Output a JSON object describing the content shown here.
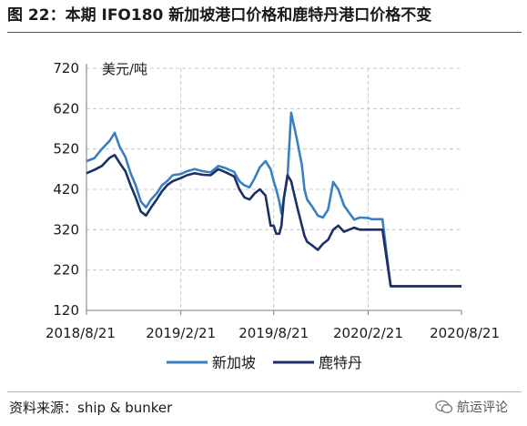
{
  "figure": {
    "title": "图 22：本期 IFO180 新加坡港口价格和鹿特丹港口价格不变",
    "source": "资料来源：ship & bunker",
    "watermark": "航运评论"
  },
  "colors": {
    "singapore": "#3a7fc2",
    "rotterdam": "#1c2f66",
    "grid": "#c8c8c8",
    "axis": "#7a7a7a",
    "title_rule": "#2b5f92"
  },
  "chart_data": {
    "type": "line",
    "ylabel": "美元/吨",
    "ylim": [
      120,
      720
    ],
    "yticks": [
      120,
      220,
      320,
      420,
      520,
      620,
      720
    ],
    "xlim": [
      "2018-08-21",
      "2020-08-21"
    ],
    "xticks": [
      "2018/8/21",
      "2019/2/21",
      "2019/8/21",
      "2020/2/21",
      "2020/8/21"
    ],
    "x_tick_dates": [
      "2018-08-21",
      "2019-02-21",
      "2019-08-21",
      "2020-02-21",
      "2020-08-21"
    ],
    "grid": true,
    "legend_position": "bottom",
    "series": [
      {
        "name": "新加坡",
        "color": "#3a7fc2",
        "x": [
          "2018-08-21",
          "2018-09-05",
          "2018-09-20",
          "2018-10-05",
          "2018-10-15",
          "2018-10-25",
          "2018-11-05",
          "2018-11-15",
          "2018-11-25",
          "2018-12-05",
          "2018-12-15",
          "2018-12-25",
          "2019-01-05",
          "2019-01-15",
          "2019-01-25",
          "2019-02-05",
          "2019-02-21",
          "2019-03-05",
          "2019-03-20",
          "2019-04-05",
          "2019-04-20",
          "2019-05-05",
          "2019-05-20",
          "2019-06-05",
          "2019-06-15",
          "2019-06-25",
          "2019-07-05",
          "2019-07-15",
          "2019-07-25",
          "2019-08-05",
          "2019-08-15",
          "2019-08-21",
          "2019-08-26",
          "2019-09-01",
          "2019-09-05",
          "2019-09-10",
          "2019-09-17",
          "2019-09-24",
          "2019-10-05",
          "2019-10-15",
          "2019-10-20",
          "2019-10-25",
          "2019-11-05",
          "2019-11-15",
          "2019-11-25",
          "2019-12-05",
          "2019-12-15",
          "2019-12-25",
          "2020-01-05",
          "2020-01-15",
          "2020-01-25",
          "2020-02-05",
          "2020-02-21",
          "2020-02-28",
          "2020-03-05",
          "2020-03-20",
          "2020-04-05",
          "2020-05-05",
          "2020-06-05",
          "2020-07-05",
          "2020-08-05",
          "2020-08-21"
        ],
        "values": [
          490,
          497,
          520,
          540,
          560,
          525,
          500,
          460,
          430,
          390,
          375,
          395,
          410,
          430,
          440,
          455,
          458,
          465,
          470,
          465,
          462,
          478,
          472,
          463,
          440,
          430,
          425,
          448,
          475,
          490,
          470,
          440,
          420,
          390,
          360,
          400,
          452,
          610,
          545,
          480,
          420,
          395,
          375,
          355,
          350,
          370,
          438,
          420,
          380,
          362,
          345,
          350,
          349,
          346,
          346,
          346,
          180,
          180,
          180,
          180,
          180,
          180
        ]
      },
      {
        "name": "鹿特丹",
        "color": "#1c2f66",
        "x": [
          "2018-08-21",
          "2018-09-05",
          "2018-09-20",
          "2018-10-05",
          "2018-10-15",
          "2018-10-25",
          "2018-11-05",
          "2018-11-15",
          "2018-11-25",
          "2018-12-05",
          "2018-12-15",
          "2018-12-25",
          "2019-01-05",
          "2019-01-15",
          "2019-01-25",
          "2019-02-05",
          "2019-02-21",
          "2019-03-05",
          "2019-03-20",
          "2019-04-05",
          "2019-04-20",
          "2019-05-05",
          "2019-05-20",
          "2019-06-05",
          "2019-06-15",
          "2019-06-25",
          "2019-07-05",
          "2019-07-15",
          "2019-07-25",
          "2019-08-05",
          "2019-08-15",
          "2019-08-21",
          "2019-08-26",
          "2019-09-01",
          "2019-09-05",
          "2019-09-10",
          "2019-09-17",
          "2019-09-24",
          "2019-10-05",
          "2019-10-15",
          "2019-10-20",
          "2019-10-25",
          "2019-11-05",
          "2019-11-15",
          "2019-11-25",
          "2019-12-05",
          "2019-12-15",
          "2019-12-25",
          "2020-01-05",
          "2020-01-15",
          "2020-01-25",
          "2020-02-05",
          "2020-02-21",
          "2020-02-28",
          "2020-03-05",
          "2020-03-20",
          "2020-04-05",
          "2020-05-05",
          "2020-06-05",
          "2020-07-05",
          "2020-08-05",
          "2020-08-21"
        ],
        "values": [
          460,
          468,
          478,
          498,
          505,
          485,
          465,
          430,
          400,
          365,
          355,
          375,
          395,
          415,
          430,
          440,
          448,
          455,
          460,
          456,
          455,
          470,
          462,
          452,
          420,
          400,
          395,
          410,
          420,
          405,
          330,
          330,
          310,
          310,
          330,
          400,
          455,
          440,
          380,
          330,
          305,
          290,
          280,
          270,
          285,
          295,
          320,
          330,
          315,
          320,
          325,
          320,
          320,
          320,
          320,
          320,
          180,
          180,
          180,
          180,
          180,
          180
        ]
      }
    ]
  }
}
